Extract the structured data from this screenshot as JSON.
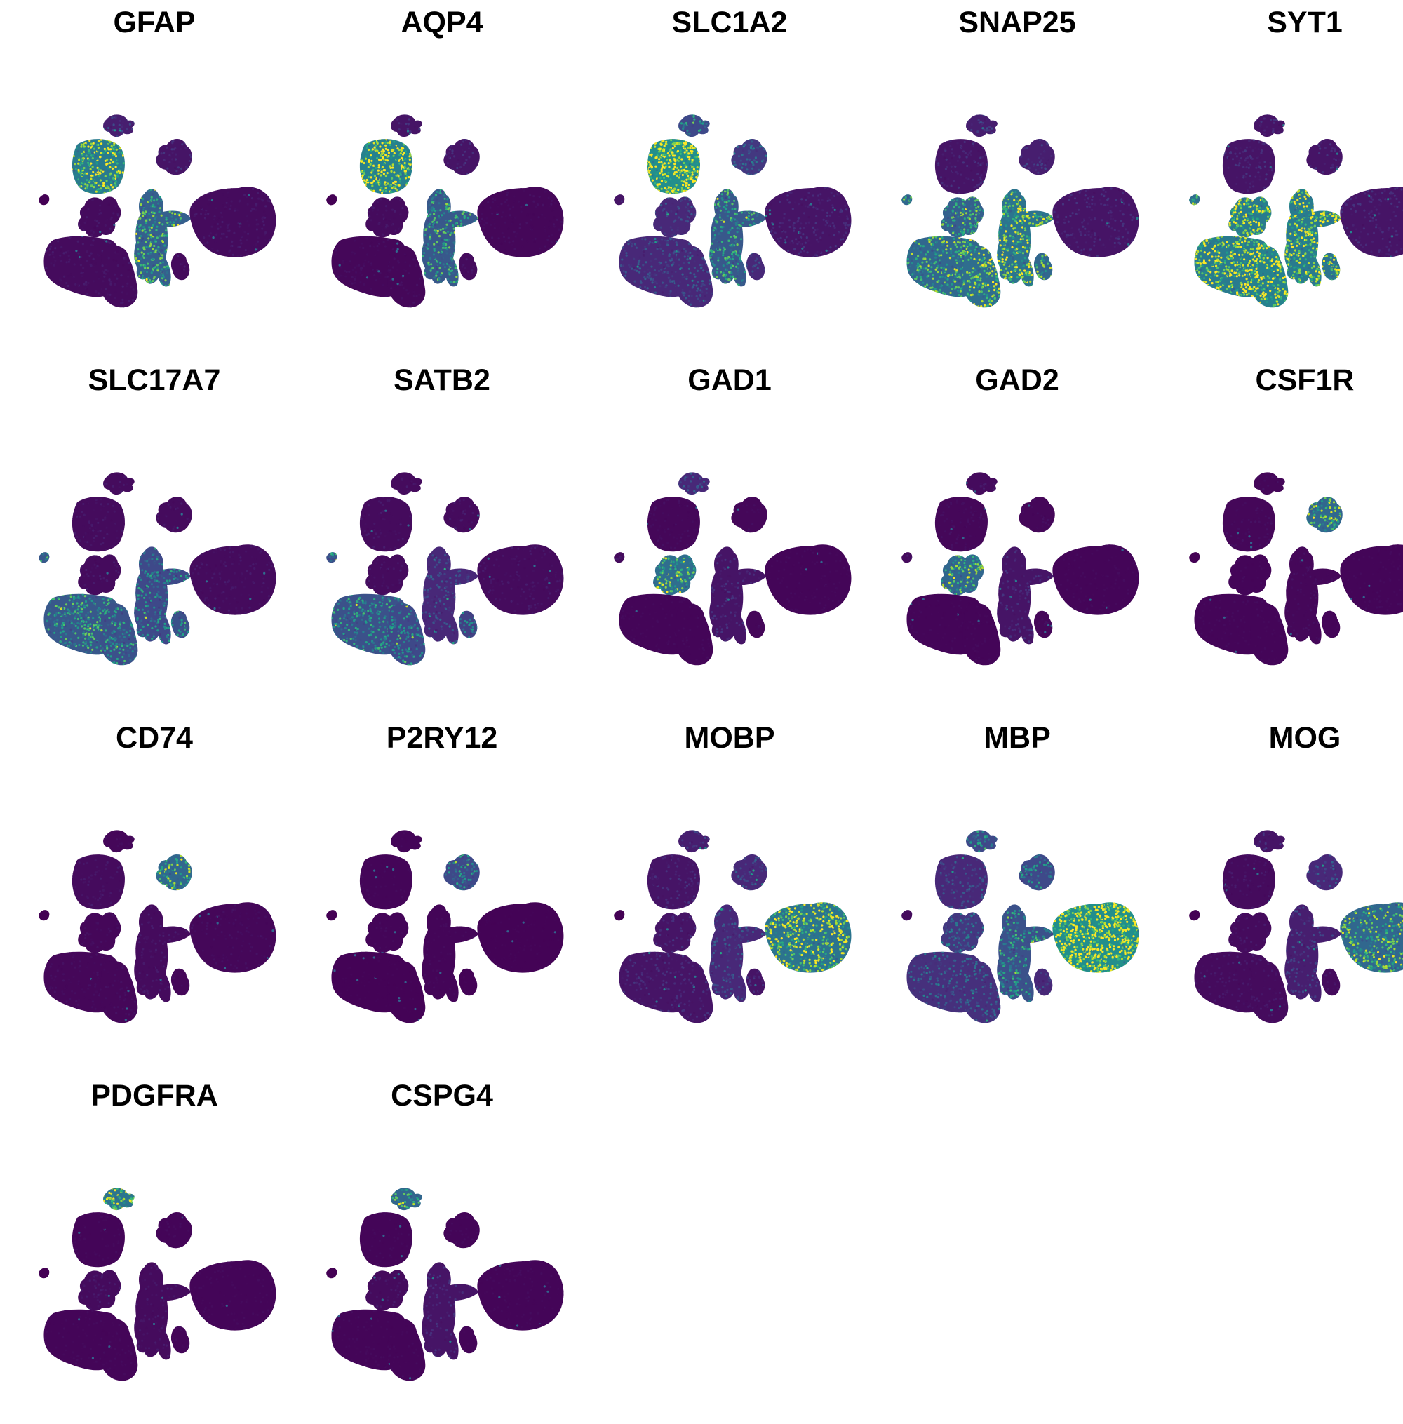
{
  "chart_data": {
    "type": "scatter",
    "plot": "UMAP feature plots",
    "colormap": "viridis",
    "background_color": "#440154",
    "low_color": "#440154",
    "high_color": "#FDE725",
    "grid": false,
    "legend": "none",
    "cluster_ids": [
      "top-small",
      "upper-left-blob",
      "upper-mid-blob",
      "left-dot",
      "mid-left-blob",
      "center-column",
      "right-large-blob",
      "bottom-left-large",
      "bottom-mid-large",
      "bottom-right-small"
    ],
    "panels": [
      {
        "gene": "GFAP",
        "expression": {
          "top-small": 0.15,
          "upper-left-blob": 0.75,
          "upper-mid-blob": 0.1,
          "left-dot": 0.0,
          "mid-left-blob": 0.05,
          "center-column": 0.55,
          "right-large-blob": 0.05,
          "bottom-left-large": 0.05,
          "bottom-mid-large": 0.05,
          "bottom-right-small": 0.05
        }
      },
      {
        "gene": "AQP4",
        "expression": {
          "top-small": 0.1,
          "upper-left-blob": 0.8,
          "upper-mid-blob": 0.1,
          "left-dot": 0.0,
          "mid-left-blob": 0.05,
          "center-column": 0.5,
          "right-large-blob": 0.03,
          "bottom-left-large": 0.03,
          "bottom-mid-large": 0.03,
          "bottom-right-small": 0.05
        }
      },
      {
        "gene": "SLC1A2",
        "expression": {
          "top-small": 0.4,
          "upper-left-blob": 0.9,
          "upper-mid-blob": 0.3,
          "left-dot": 0.1,
          "mid-left-blob": 0.2,
          "center-column": 0.5,
          "right-large-blob": 0.1,
          "bottom-left-large": 0.2,
          "bottom-mid-large": 0.2,
          "bottom-right-small": 0.2
        }
      },
      {
        "gene": "SNAP25",
        "expression": {
          "top-small": 0.15,
          "upper-left-blob": 0.1,
          "upper-mid-blob": 0.15,
          "left-dot": 0.6,
          "mid-left-blob": 0.55,
          "center-column": 0.7,
          "right-large-blob": 0.1,
          "bottom-left-large": 0.6,
          "bottom-mid-large": 0.65,
          "bottom-right-small": 0.6
        }
      },
      {
        "gene": "SYT1",
        "expression": {
          "top-small": 0.1,
          "upper-left-blob": 0.1,
          "upper-mid-blob": 0.1,
          "left-dot": 0.65,
          "mid-left-blob": 0.75,
          "center-column": 0.75,
          "right-large-blob": 0.1,
          "bottom-left-large": 0.75,
          "bottom-mid-large": 0.8,
          "bottom-right-small": 0.7
        }
      },
      {
        "gene": "SLC17A7",
        "expression": {
          "top-small": 0.05,
          "upper-left-blob": 0.05,
          "upper-mid-blob": 0.05,
          "left-dot": 0.5,
          "mid-left-blob": 0.05,
          "center-column": 0.4,
          "right-large-blob": 0.05,
          "bottom-left-large": 0.5,
          "bottom-mid-large": 0.45,
          "bottom-right-small": 0.45
        }
      },
      {
        "gene": "SATB2",
        "expression": {
          "top-small": 0.05,
          "upper-left-blob": 0.05,
          "upper-mid-blob": 0.05,
          "left-dot": 0.45,
          "mid-left-blob": 0.05,
          "center-column": 0.2,
          "right-large-blob": 0.05,
          "bottom-left-large": 0.45,
          "bottom-mid-large": 0.4,
          "bottom-right-small": 0.35
        }
      },
      {
        "gene": "GAD1",
        "expression": {
          "top-small": 0.2,
          "upper-left-blob": 0.03,
          "upper-mid-blob": 0.03,
          "left-dot": 0.05,
          "mid-left-blob": 0.65,
          "center-column": 0.1,
          "right-large-blob": 0.02,
          "bottom-left-large": 0.02,
          "bottom-mid-large": 0.02,
          "bottom-right-small": 0.03
        }
      },
      {
        "gene": "GAD2",
        "expression": {
          "top-small": 0.05,
          "upper-left-blob": 0.03,
          "upper-mid-blob": 0.03,
          "left-dot": 0.05,
          "mid-left-blob": 0.6,
          "center-column": 0.1,
          "right-large-blob": 0.02,
          "bottom-left-large": 0.02,
          "bottom-mid-large": 0.02,
          "bottom-right-small": 0.03
        }
      },
      {
        "gene": "CSF1R",
        "expression": {
          "top-small": 0.03,
          "upper-left-blob": 0.03,
          "upper-mid-blob": 0.6,
          "left-dot": 0.0,
          "mid-left-blob": 0.02,
          "center-column": 0.03,
          "right-large-blob": 0.02,
          "bottom-left-large": 0.02,
          "bottom-mid-large": 0.02,
          "bottom-right-small": 0.02
        }
      },
      {
        "gene": "CD74",
        "expression": {
          "top-small": 0.03,
          "upper-left-blob": 0.05,
          "upper-mid-blob": 0.6,
          "left-dot": 0.0,
          "mid-left-blob": 0.03,
          "center-column": 0.05,
          "right-large-blob": 0.03,
          "bottom-left-large": 0.03,
          "bottom-mid-large": 0.03,
          "bottom-right-small": 0.03
        }
      },
      {
        "gene": "P2RY12",
        "expression": {
          "top-small": 0.02,
          "upper-left-blob": 0.02,
          "upper-mid-blob": 0.4,
          "left-dot": 0.0,
          "mid-left-blob": 0.02,
          "center-column": 0.02,
          "right-large-blob": 0.01,
          "bottom-left-large": 0.01,
          "bottom-mid-large": 0.01,
          "bottom-right-small": 0.01
        }
      },
      {
        "gene": "MOBP",
        "expression": {
          "top-small": 0.15,
          "upper-left-blob": 0.1,
          "upper-mid-blob": 0.2,
          "left-dot": 0.0,
          "mid-left-blob": 0.1,
          "center-column": 0.2,
          "right-large-blob": 0.7,
          "bottom-left-large": 0.1,
          "bottom-mid-large": 0.1,
          "bottom-right-small": 0.1
        }
      },
      {
        "gene": "MBP",
        "expression": {
          "top-small": 0.4,
          "upper-left-blob": 0.2,
          "upper-mid-blob": 0.4,
          "left-dot": 0.05,
          "mid-left-blob": 0.3,
          "center-column": 0.45,
          "right-large-blob": 0.9,
          "bottom-left-large": 0.25,
          "bottom-mid-large": 0.25,
          "bottom-right-small": 0.2
        }
      },
      {
        "gene": "MOG",
        "expression": {
          "top-small": 0.1,
          "upper-left-blob": 0.05,
          "upper-mid-blob": 0.2,
          "left-dot": 0.0,
          "mid-left-blob": 0.05,
          "center-column": 0.15,
          "right-large-blob": 0.6,
          "bottom-left-large": 0.05,
          "bottom-mid-large": 0.05,
          "bottom-right-small": 0.05
        }
      },
      {
        "gene": "PDGFRA",
        "expression": {
          "top-small": 0.7,
          "upper-left-blob": 0.02,
          "upper-mid-blob": 0.02,
          "left-dot": 0.0,
          "mid-left-blob": 0.05,
          "center-column": 0.05,
          "right-large-blob": 0.02,
          "bottom-left-large": 0.02,
          "bottom-mid-large": 0.02,
          "bottom-right-small": 0.02
        }
      },
      {
        "gene": "CSPG4",
        "expression": {
          "top-small": 0.6,
          "upper-left-blob": 0.02,
          "upper-mid-blob": 0.02,
          "left-dot": 0.0,
          "mid-left-blob": 0.05,
          "center-column": 0.1,
          "right-large-blob": 0.02,
          "bottom-left-large": 0.02,
          "bottom-mid-large": 0.02,
          "bottom-right-small": 0.02
        }
      }
    ]
  }
}
